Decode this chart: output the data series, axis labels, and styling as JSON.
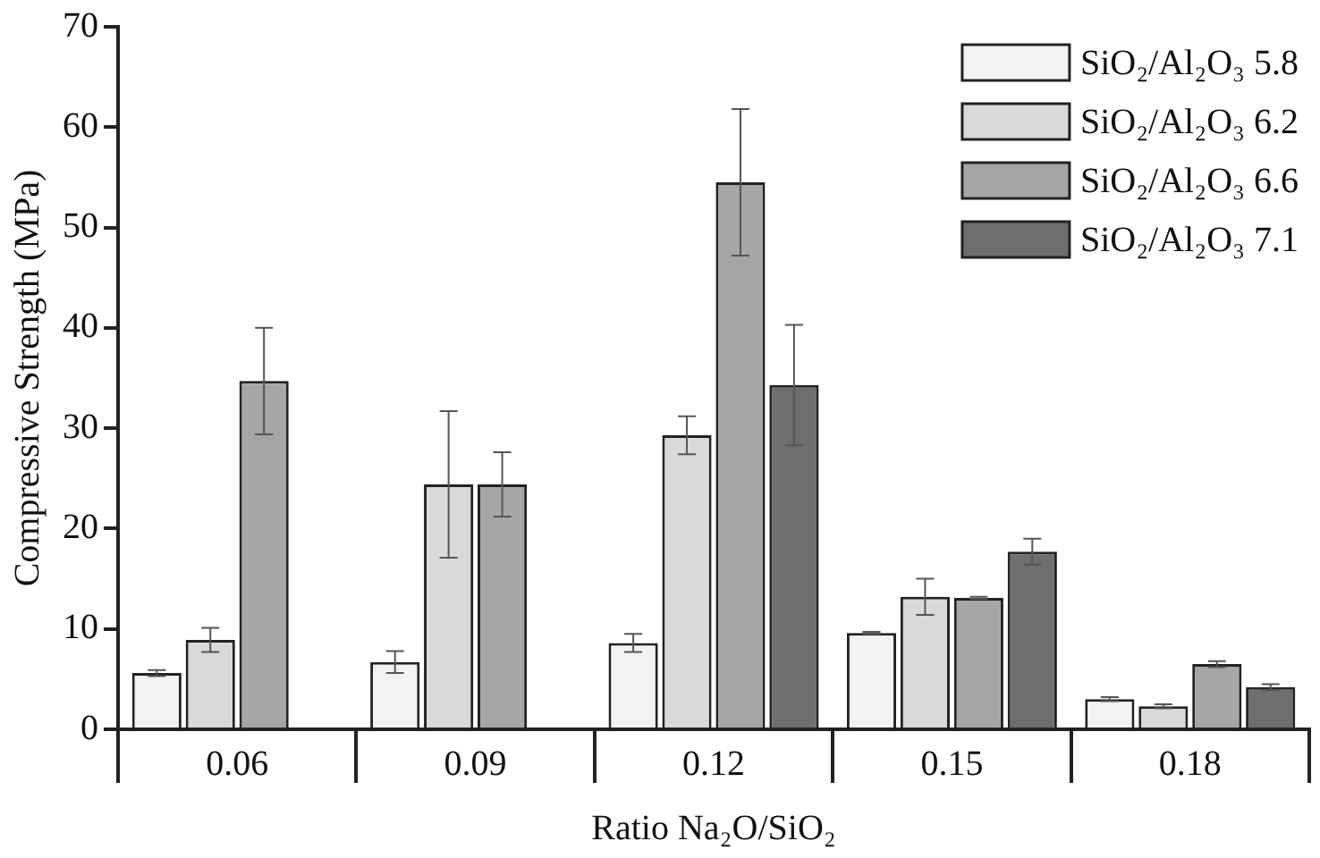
{
  "chart_data": {
    "type": "bar",
    "xlabel": "Ratio Na₂O/SiO₂",
    "ylabel": "Compressive Strength (MPa)",
    "categories": [
      "0.06",
      "0.09",
      "0.12",
      "0.15",
      "0.18"
    ],
    "series": [
      {
        "name": "SiO₂/Al₂O₃ 5.8",
        "color": "#f2f2f2",
        "values": [
          5.6,
          6.7,
          8.6,
          9.6,
          3.0
        ],
        "errors": [
          0.3,
          1.1,
          0.9,
          0.1,
          0.2
        ]
      },
      {
        "name": "SiO₂/Al₂O₃ 6.2",
        "color": "#d9d9d9",
        "values": [
          8.9,
          24.4,
          29.3,
          13.2,
          2.3
        ],
        "errors": [
          1.2,
          7.3,
          1.9,
          1.8,
          0.2
        ]
      },
      {
        "name": "SiO₂/Al₂O₃ 6.6",
        "color": "#a6a6a6",
        "values": [
          34.7,
          24.4,
          54.5,
          13.1,
          6.5
        ],
        "errors": [
          5.3,
          3.2,
          7.3,
          0.1,
          0.3
        ]
      },
      {
        "name": "SiO₂/Al₂O₃ 7.1",
        "color": "#6e6e6e",
        "values": [
          null,
          null,
          34.3,
          17.7,
          4.2
        ],
        "errors": [
          null,
          null,
          6.0,
          1.3,
          0.3
        ]
      }
    ],
    "ylim": [
      0,
      70
    ],
    "yticks": [
      0,
      10,
      20,
      30,
      40,
      50,
      60,
      70
    ],
    "grid": false,
    "legend": "top right"
  }
}
